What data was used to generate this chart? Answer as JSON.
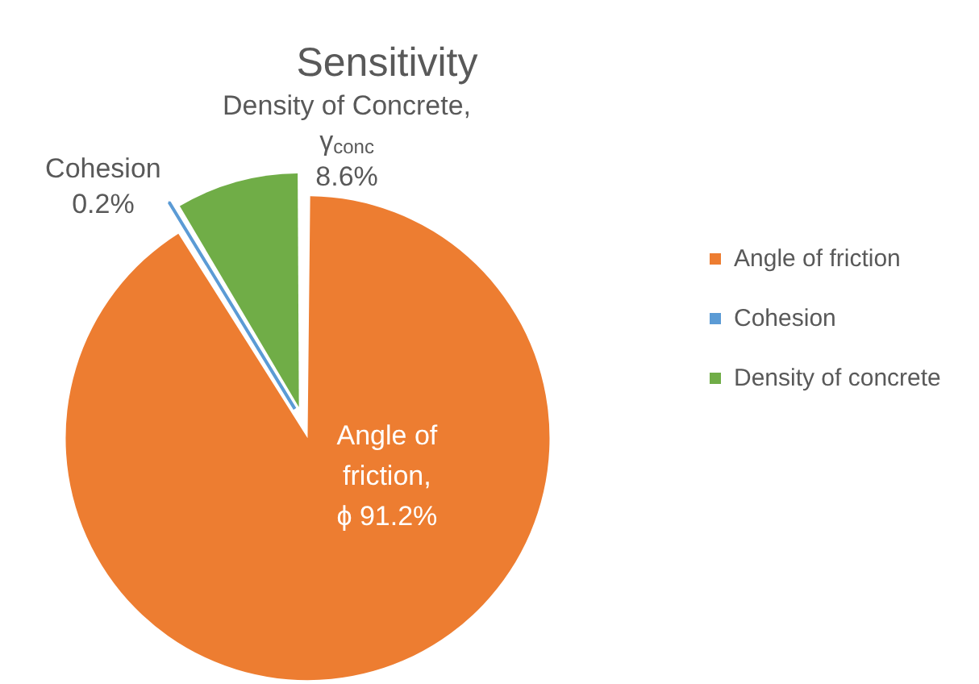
{
  "chart_data": {
    "type": "pie",
    "title": "Sensitivity",
    "categories": [
      "Angle of friction",
      "Cohesion",
      "Density of concrete"
    ],
    "values": [
      91.2,
      0.2,
      8.6
    ],
    "colors": [
      "#ed7d31",
      "#5b9bd5",
      "#70ad47"
    ],
    "value_labels": [
      "Angle of\nfriction,\nϕ 91.2%",
      "Cohesion\n0.2%",
      "Density of Concrete,\nγ$_{conc}$\n8.6%"
    ],
    "legend": "right"
  }
}
